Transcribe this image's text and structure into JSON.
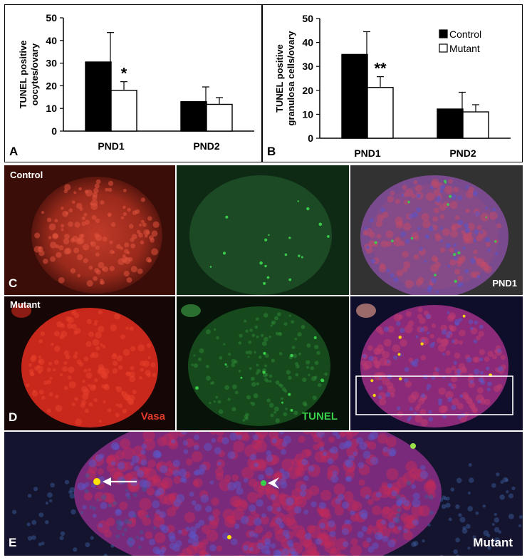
{
  "chart_data": [
    {
      "type": "bar",
      "panel": "A",
      "categories": [
        "PND1",
        "PND2"
      ],
      "series": [
        {
          "name": "Control",
          "values": [
            30.5,
            13.0
          ],
          "errors": [
            13.0,
            6.5
          ]
        },
        {
          "name": "Mutant",
          "values": [
            18.0,
            11.8
          ],
          "errors": [
            3.8,
            3.0
          ]
        }
      ],
      "ylabel_lines": [
        "TUNEL positive",
        "oocytes/ovary"
      ],
      "ylim": [
        0,
        50
      ],
      "yticks": [
        0,
        10,
        20,
        30,
        40,
        50
      ],
      "annotations": [
        {
          "category": "PND1",
          "series": "Mutant",
          "text": "*"
        }
      ],
      "legend": "none"
    },
    {
      "type": "bar",
      "panel": "B",
      "categories": [
        "PND1",
        "PND2"
      ],
      "series": [
        {
          "name": "Control",
          "values": [
            35.0,
            12.2
          ],
          "errors": [
            9.5,
            7.0
          ]
        },
        {
          "name": "Mutant",
          "values": [
            21.2,
            11.0
          ],
          "errors": [
            4.5,
            3.0
          ]
        }
      ],
      "ylabel_lines": [
        "TUNEL positive",
        "granulosa cells/ovary"
      ],
      "ylim": [
        0,
        50
      ],
      "yticks": [
        0,
        10,
        20,
        30,
        40,
        50
      ],
      "annotations": [
        {
          "category": "PND1",
          "series": "Mutant",
          "text": "**"
        }
      ],
      "legend": "top-right"
    }
  ],
  "figure": {
    "labels": {
      "A": "A",
      "B": "B",
      "C": "C",
      "D": "D",
      "E": "E"
    },
    "row_c": {
      "label": "Control",
      "stage": "PND1"
    },
    "row_d": {
      "label": "Mutant",
      "vasa": "Vasa",
      "tunel": "TUNEL"
    },
    "row_e": {
      "label": "Mutant"
    },
    "colors": {
      "control_bar": "#000000",
      "mutant_bar": "#ffffff",
      "vasa_red": "#e03a2a",
      "tunel_green": "#39d14b",
      "dapi_blue": "#5a55c8",
      "signal_yellow": "#ffe400"
    }
  }
}
